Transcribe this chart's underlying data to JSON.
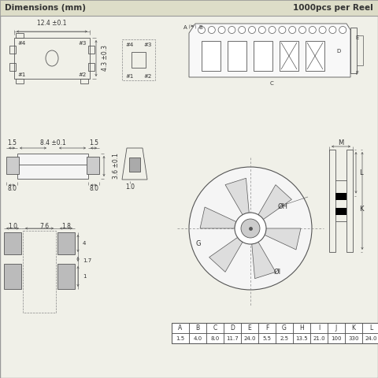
{
  "title_left": "Dimensions (mm)",
  "title_right": "1000pcs per Reel",
  "header_bg": "#ddddc8",
  "bg_color": "#f0f0e8",
  "border_color": "#999999",
  "line_color": "#555555",
  "table_headers": [
    "A",
    "B",
    "C",
    "D",
    "E",
    "F",
    "G",
    "H",
    "I",
    "J",
    "K",
    "L"
  ],
  "table_values": [
    "1.5",
    "4.0",
    "8.0",
    "11.7",
    "24.0",
    "5.5",
    "2.5",
    "13.5",
    "21.0",
    "100",
    "330",
    "24.0"
  ]
}
